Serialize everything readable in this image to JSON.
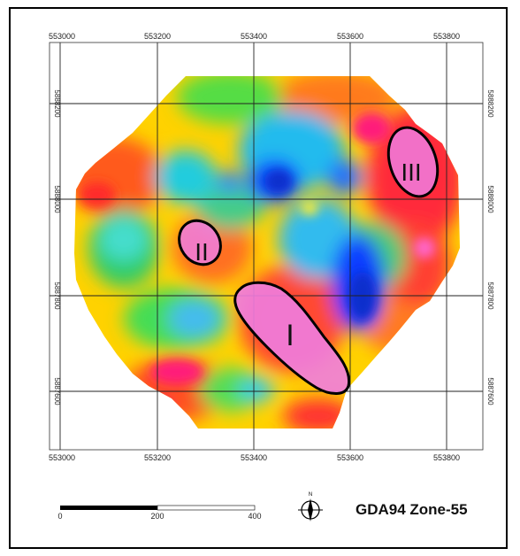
{
  "map": {
    "projection_label": "GDA94 Zone-55",
    "easting_ticks": [
      "553000",
      "553200",
      "553400",
      "553600",
      "553800"
    ],
    "northing_ticks": [
      "5888200",
      "5888000",
      "5887800",
      "5887600"
    ],
    "zones": [
      {
        "id": "I",
        "label": "I"
      },
      {
        "id": "II",
        "label": "II"
      },
      {
        "id": "III",
        "label": "III"
      }
    ],
    "scale_bar": {
      "labels": [
        "0",
        "200",
        "400"
      ],
      "unit_note": ""
    },
    "north_arrow": {
      "label": "N",
      "icon": "north-arrow-icon"
    },
    "colors": {
      "zone_outline": "#000000",
      "zone_fill": "#f07de0",
      "high": "#ff1f7a",
      "low": "#0b3cff"
    }
  }
}
